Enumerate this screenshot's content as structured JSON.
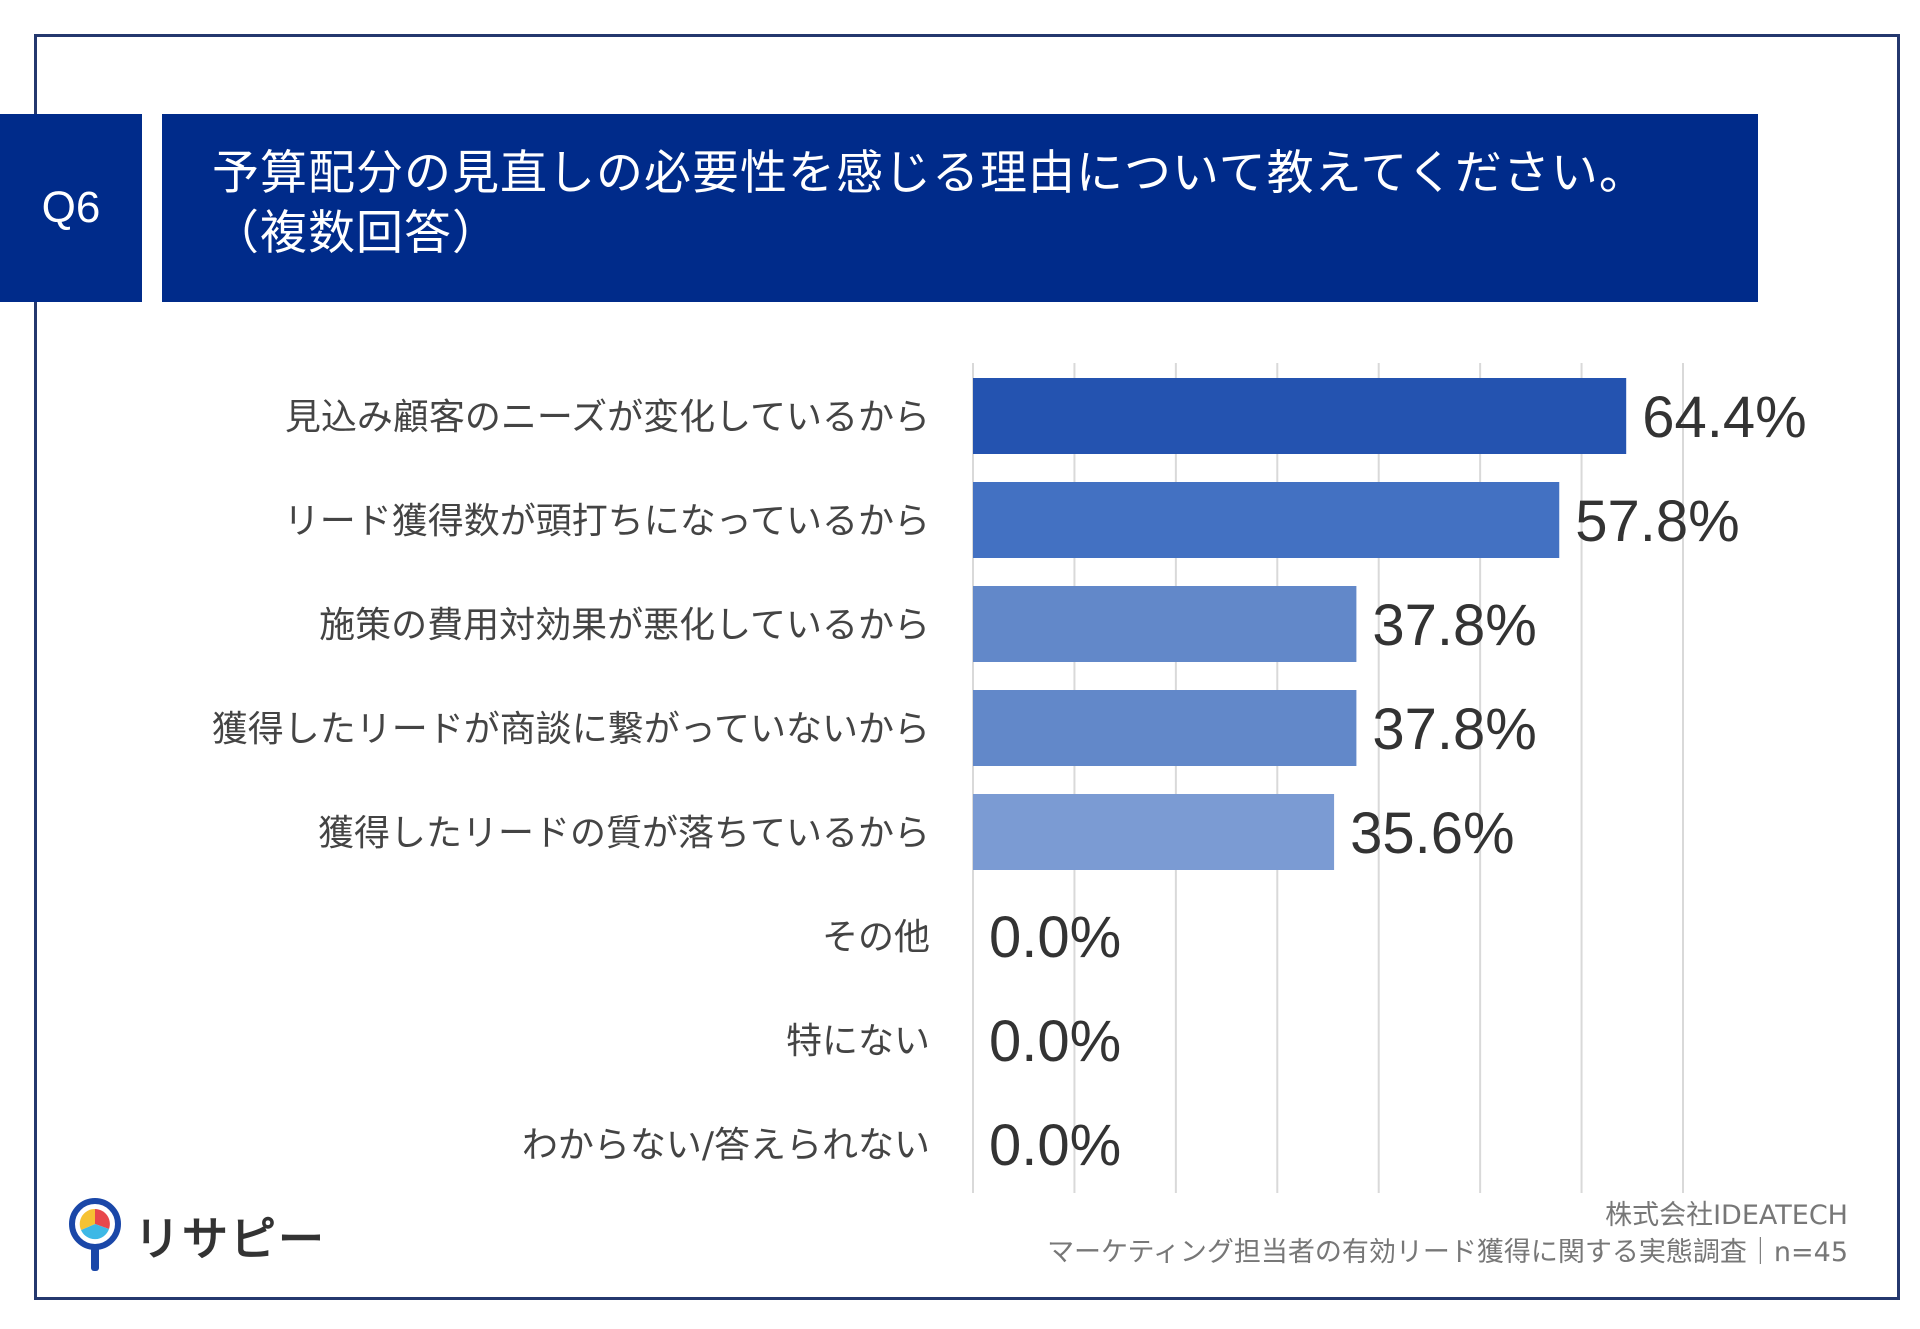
{
  "question": {
    "number": "Q6",
    "title_line1": "予算配分の見直しの必要性を感じる理由について教えてください。",
    "title_line2": "（複数回答）"
  },
  "chart_data": {
    "type": "bar",
    "orientation": "horizontal",
    "categories": [
      "見込み顧客のニーズが変化しているから",
      "リード獲得数が頭打ちになっているから",
      "施策の費用対効果が悪化しているから",
      "獲得したリードが商談に繋がっていないから",
      "獲得したリードの質が落ちているから",
      "その他",
      "特にない",
      "わからない/答えられない"
    ],
    "values": [
      64.4,
      57.8,
      37.8,
      37.8,
      35.6,
      0.0,
      0.0,
      0.0
    ],
    "value_labels": [
      "64.4%",
      "57.8%",
      "37.8%",
      "37.8%",
      "35.6%",
      "0.0%",
      "0.0%",
      "0.0%"
    ],
    "bar_colors": [
      "#2453b0",
      "#4371c2",
      "#6288c9",
      "#6288c9",
      "#7b9bd3",
      "#7b9bd3",
      "#7b9bd3",
      "#7b9bd3"
    ],
    "xlim": [
      0,
      70
    ],
    "gridlines": true
  },
  "credits": {
    "company": "株式会社IDEATECH",
    "survey": "マーケティング担当者の有効リード獲得に関する実態調査｜n=45"
  },
  "logo": {
    "text": "リサピー",
    "icon": "location-pin-icon"
  }
}
